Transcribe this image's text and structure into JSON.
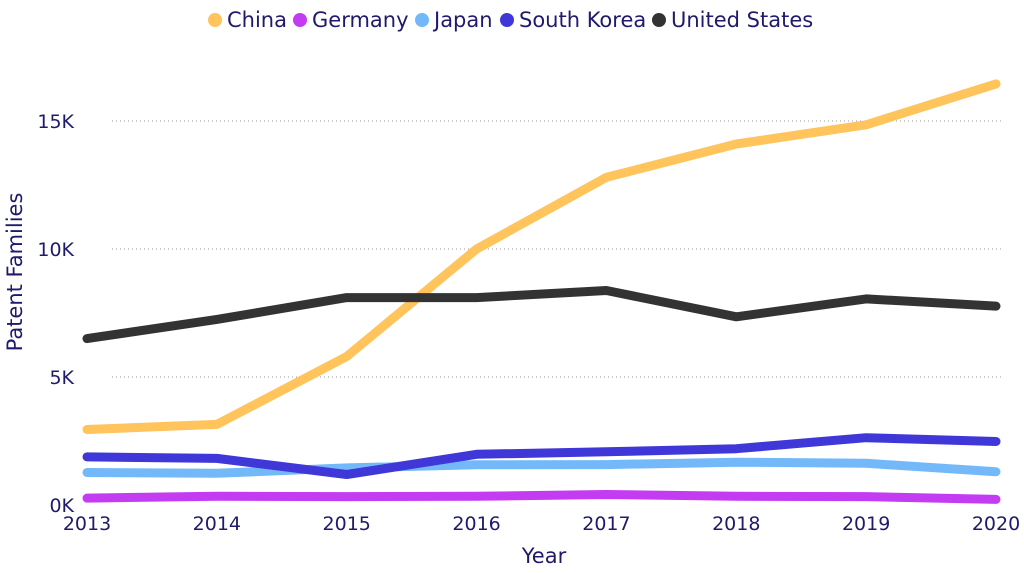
{
  "chart_data": {
    "type": "line",
    "title": "",
    "xlabel": "Year",
    "ylabel": "Patent Families",
    "x": [
      "2013",
      "2014",
      "2015",
      "2016",
      "2017",
      "2018",
      "2019",
      "2020"
    ],
    "ylim": [
      0,
      17500
    ],
    "yticks": [
      0,
      5000,
      10000,
      15000
    ],
    "ytick_labels": [
      "0K",
      "5K",
      "10K",
      "15K"
    ],
    "grid": true,
    "legend_position": "top-center",
    "series": [
      {
        "name": "China",
        "color": "#ffc45c",
        "values": [
          2950,
          3150,
          5800,
          10000,
          12800,
          14100,
          14850,
          16450
        ]
      },
      {
        "name": "Germany",
        "color": "#c33cf2",
        "values": [
          270,
          340,
          330,
          340,
          410,
          340,
          330,
          220
        ]
      },
      {
        "name": "Japan",
        "color": "#73b9fa",
        "values": [
          1270,
          1240,
          1450,
          1570,
          1580,
          1670,
          1630,
          1300
        ]
      },
      {
        "name": "South Korea",
        "color": "#3f37d7",
        "values": [
          1880,
          1820,
          1190,
          1980,
          2080,
          2200,
          2630,
          2480
        ]
      },
      {
        "name": "United States",
        "color": "#333333",
        "values": [
          6500,
          7250,
          8100,
          8100,
          8380,
          7350,
          8050,
          7770
        ]
      }
    ]
  }
}
